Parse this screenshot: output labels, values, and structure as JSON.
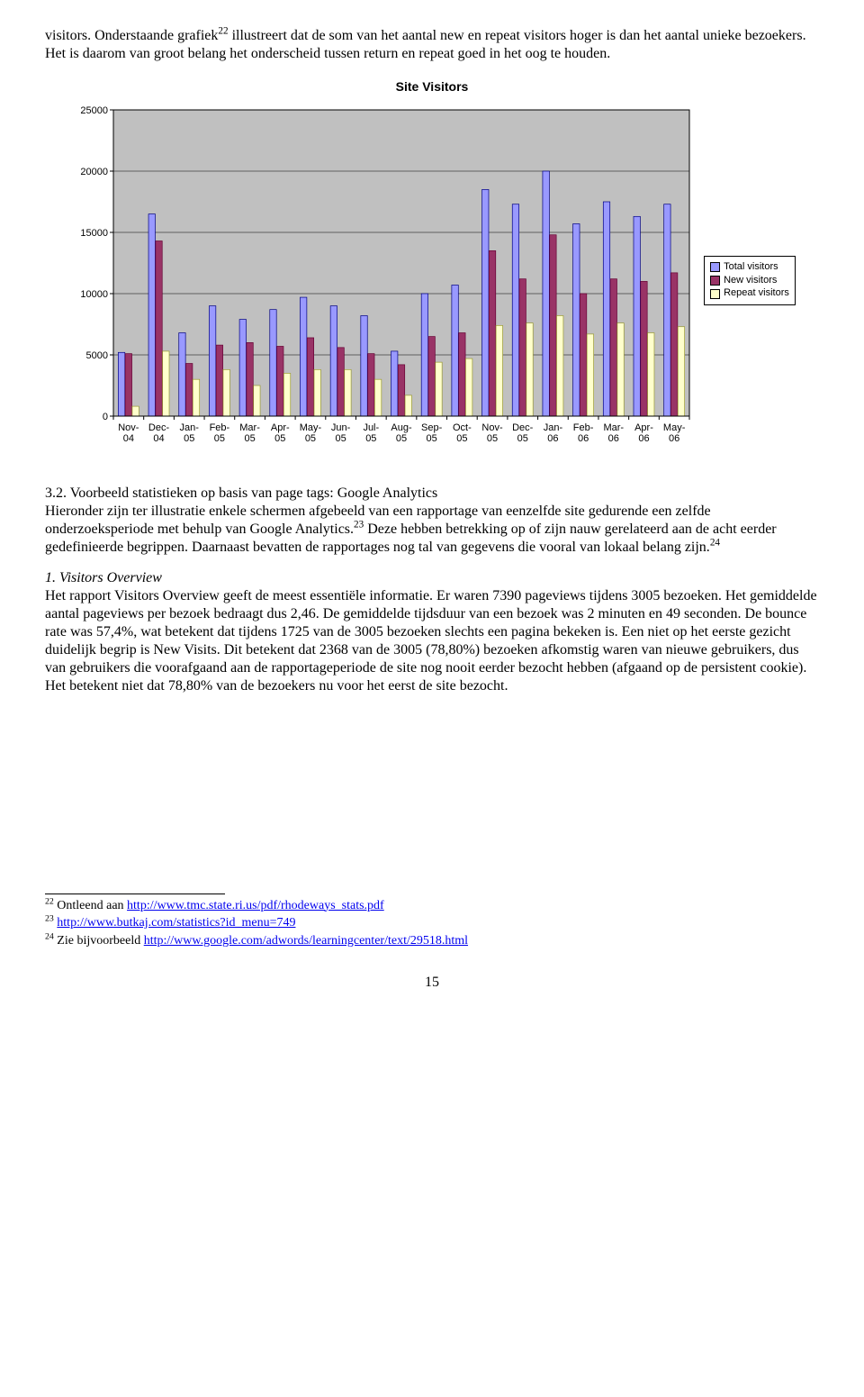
{
  "para1": {
    "pre": "visitors. Onderstaande grafiek",
    "sup": "22",
    "post": " illustreert dat de som van het aantal new en repeat visitors hoger is dan het aantal unieke bezoekers. Het is daarom van groot belang het onderscheid tussen return en repeat goed in het oog te houden."
  },
  "chart": {
    "title": "Site Visitors",
    "type": "bar",
    "plot_bg": "#c0c0c0",
    "axis_color": "#000000",
    "grid_color": "#000000",
    "series": [
      {
        "name": "Total visitors",
        "fill": "#9999ff",
        "border": "#000080"
      },
      {
        "name": "New visitors",
        "fill": "#993366",
        "border": "#660033"
      },
      {
        "name": "Repeat visitors",
        "fill": "#ffffcc",
        "border": "#999933"
      }
    ],
    "categories": [
      "Nov-04",
      "Dec-04",
      "Jan-05",
      "Feb-05",
      "Mar-05",
      "Apr-05",
      "May-05",
      "Jun-05",
      "Jul-05",
      "Aug-05",
      "Sep-05",
      "Oct-05",
      "Nov-05",
      "Dec-05",
      "Jan-06",
      "Feb-06",
      "Mar-06",
      "Apr-06",
      "May-06"
    ],
    "values": {
      "total": [
        5200,
        16500,
        6800,
        9000,
        7900,
        8700,
        9700,
        9000,
        8200,
        5300,
        10000,
        10700,
        18500,
        17300,
        20000,
        15700,
        17500,
        16300,
        17300
      ],
      "new": [
        5100,
        14300,
        4300,
        5800,
        6000,
        5700,
        6400,
        5600,
        5100,
        4200,
        6500,
        6800,
        13500,
        11200,
        14800,
        10000,
        11200,
        11000,
        11700
      ],
      "repeat": [
        800,
        5300,
        3000,
        3800,
        2500,
        3500,
        3800,
        3800,
        3000,
        1700,
        4400,
        4700,
        7400,
        7600,
        8200,
        6700,
        7600,
        6800,
        7300
      ]
    },
    "ylim": [
      0,
      25000
    ],
    "ytick_step": 5000,
    "tick_font": "Arial",
    "tick_fontsize": 11,
    "legend": [
      "Total visitors",
      "New visitors",
      "Repeat visitors"
    ]
  },
  "section": {
    "heading_pre": "3.2. Voorbeeld statistieken op basis van page tags: Google Analytics",
    "body_a": "Hieronder zijn ter illustratie enkele schermen afgebeeld van een rapportage van eenzelfde site gedurende een zelfde onderzoeksperiode met behulp van Google Analytics.",
    "sup1": "23",
    "body_b": "  Deze hebben betrekking op of zijn nauw gerelateerd aan de acht eerder gedefinieerde begrippen. Daarnaast bevatten de rapportages nog tal van gegevens die vooral van lokaal belang zijn.",
    "sup2": "24"
  },
  "overview": {
    "title": "1. Visitors Overview",
    "body": "Het rapport Visitors Overview geeft de meest essentiële informatie. Er waren 7390 pageviews tijdens 3005 bezoeken. Het gemiddelde aantal pageviews per bezoek bedraagt dus 2,46. De gemiddelde tijdsduur van een bezoek was 2 minuten en 49 seconden. De bounce rate was 57,4%, wat betekent dat tijdens 1725 van de 3005 bezoeken slechts een pagina bekeken is. Een niet op het eerste gezicht duidelijk begrip is New Visits. Dit betekent dat 2368 van de 3005 (78,80%) bezoeken afkomstig waren van nieuwe gebruikers, dus van gebruikers die voorafgaand aan de rapportageperiode de site nog nooit eerder bezocht hebben (afgaand op de persistent cookie). Het betekent niet dat 78,80% van de bezoekers nu voor het eerst de site bezocht."
  },
  "footnotes": {
    "f22_pre": "Ontleend aan ",
    "f22_link": "http://www.tmc.state.ri.us/pdf/rhodeways_stats.pdf",
    "f23_link": "http://www.butkaj.com/statistics?id_menu=749",
    "f24_pre": "Zie bijvoorbeeld ",
    "f24_link": "http://www.google.com/adwords/learningcenter/text/29518.html"
  },
  "page_number": "15"
}
